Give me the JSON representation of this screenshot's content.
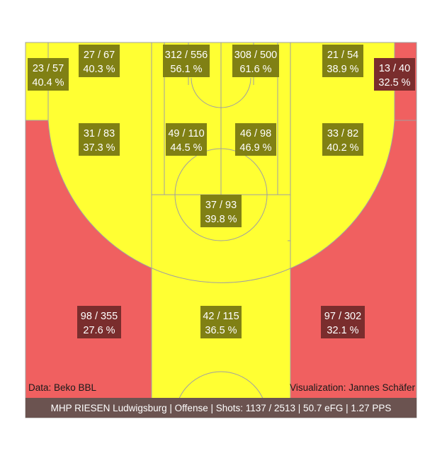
{
  "chart_data": {
    "type": "heatmap",
    "title": "",
    "subtitle": "",
    "court": "half-court shot chart (zones colored by field goal percentage)",
    "colors": {
      "court_good": "#ffff33",
      "court_bad": "#f06060",
      "box_good": "#808014",
      "box_bad": "#7a2d2d",
      "line": "#a0a0a0",
      "footer_bg": "#6b5350"
    },
    "zones": [
      {
        "id": "left-corner-three",
        "made": 23,
        "attempts": 57,
        "label": "23 / 57",
        "pct": 40.4,
        "pct_label": "40.4 %"
      },
      {
        "id": "left-wing-baseline-two",
        "made": 27,
        "attempts": 67,
        "label": "27 / 67",
        "pct": 40.3,
        "pct_label": "40.3 %"
      },
      {
        "id": "restricted-left",
        "made": 312,
        "attempts": 556,
        "label": "312 / 556",
        "pct": 56.1,
        "pct_label": "56.1 %"
      },
      {
        "id": "restricted-right",
        "made": 308,
        "attempts": 500,
        "label": "308 / 500",
        "pct": 61.6,
        "pct_label": "61.6 %"
      },
      {
        "id": "right-wing-baseline-two",
        "made": 21,
        "attempts": 54,
        "label": "21 / 54",
        "pct": 38.9,
        "pct_label": "38.9 %"
      },
      {
        "id": "right-corner-three",
        "made": 13,
        "attempts": 40,
        "label": "13 / 40",
        "pct": 32.5,
        "pct_label": "32.5 %"
      },
      {
        "id": "left-elbow-two",
        "made": 31,
        "attempts": 83,
        "label": "31 / 83",
        "pct": 37.3,
        "pct_label": "37.3 %"
      },
      {
        "id": "paint-left",
        "made": 49,
        "attempts": 110,
        "label": "49 / 110",
        "pct": 44.5,
        "pct_label": "44.5 %"
      },
      {
        "id": "paint-right",
        "made": 46,
        "attempts": 98,
        "label": "46 / 98",
        "pct": 46.9,
        "pct_label": "46.9 %"
      },
      {
        "id": "right-elbow-two",
        "made": 33,
        "attempts": 82,
        "label": "33 / 82",
        "pct": 40.2,
        "pct_label": "40.2 %"
      },
      {
        "id": "top-key-two",
        "made": 37,
        "attempts": 93,
        "label": "37 / 93",
        "pct": 39.8,
        "pct_label": "39.8 %"
      },
      {
        "id": "left-wing-three",
        "made": 98,
        "attempts": 355,
        "label": "98 / 355",
        "pct": 27.6,
        "pct_label": "27.6 %"
      },
      {
        "id": "top-three",
        "made": 42,
        "attempts": 115,
        "label": "42 / 115",
        "pct": 36.5,
        "pct_label": "36.5 %"
      },
      {
        "id": "right-wing-three",
        "made": 97,
        "attempts": 302,
        "label": "97 / 302",
        "pct": 32.1,
        "pct_label": "32.1 %"
      }
    ],
    "annotations": {
      "source": "Data: Beko BBL",
      "credit": "Visualization: Jannes Schäfer"
    },
    "footer": {
      "text": "MHP RIESEN Ludwigsburg | Offense | Shots: 1137 / 2513 | 50.7 eFG | 1.27 PPS",
      "team": "MHP RIESEN Ludwigsburg",
      "mode": "Offense",
      "shots_made": 1137,
      "shots_attempted": 2513,
      "efg": 50.7,
      "pps": 1.27
    }
  }
}
